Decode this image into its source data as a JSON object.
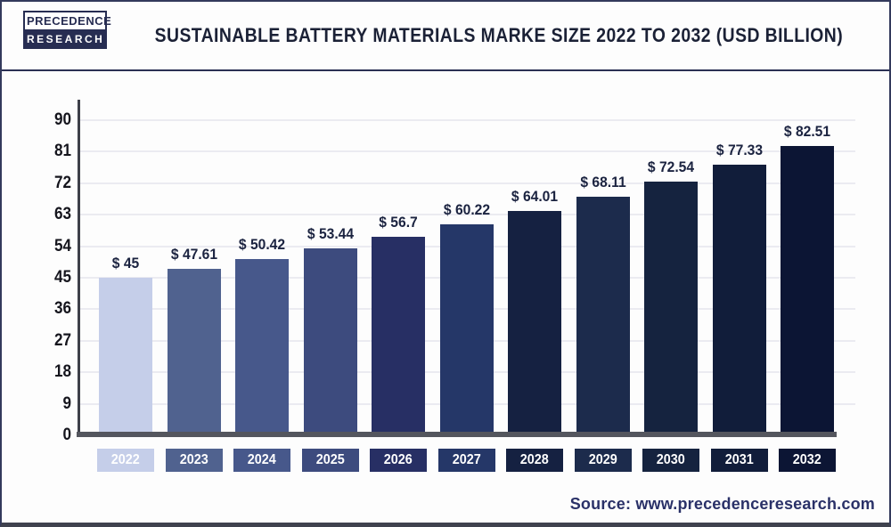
{
  "header": {
    "logo_line1": "PRECEDENCE",
    "logo_line2": "RESEARCH",
    "title": "SUSTAINABLE BATTERY MATERIALS MARKE SIZE 2022 TO 2032 (USD BILLION)"
  },
  "chart_data": {
    "type": "bar",
    "title": "SUSTAINABLE BATTERY MATERIALS MARKE SIZE 2022 TO 2032 (USD BILLION)",
    "xlabel": "",
    "ylabel": "",
    "categories": [
      "2022",
      "2023",
      "2024",
      "2025",
      "2026",
      "2027",
      "2028",
      "2029",
      "2030",
      "2031",
      "2032"
    ],
    "values": [
      45,
      47.61,
      50.42,
      53.44,
      56.7,
      60.22,
      64.01,
      68.11,
      72.54,
      77.33,
      82.51
    ],
    "value_labels": [
      "$ 45",
      "$ 47.61",
      "$ 50.42",
      "$ 53.44",
      "$ 56.7",
      "$ 60.22",
      "$ 64.01",
      "$ 68.11",
      "$ 72.54",
      "$ 77.33",
      "$ 82.51"
    ],
    "bar_colors": [
      "#c5cee9",
      "#50628f",
      "#47588b",
      "#3d4b7e",
      "#272f64",
      "#253768",
      "#152141",
      "#1c2b4c",
      "#15233f",
      "#111d3a",
      "#0c1534"
    ],
    "y_ticks": [
      0,
      9,
      18,
      27,
      36,
      45,
      54,
      63,
      72,
      81,
      90
    ],
    "ylim": [
      0,
      90
    ],
    "grid": "horizontal",
    "legend": "none"
  },
  "footer": {
    "source": "Source: www.precedenceresearch.com"
  },
  "colors": {
    "brand_navy": "#272d52",
    "title_text": "#1b2136",
    "axis_line": "#3e4049",
    "baseline": "#54565e",
    "gridline": "#ebebf1",
    "source_text": "#2a3168"
  }
}
